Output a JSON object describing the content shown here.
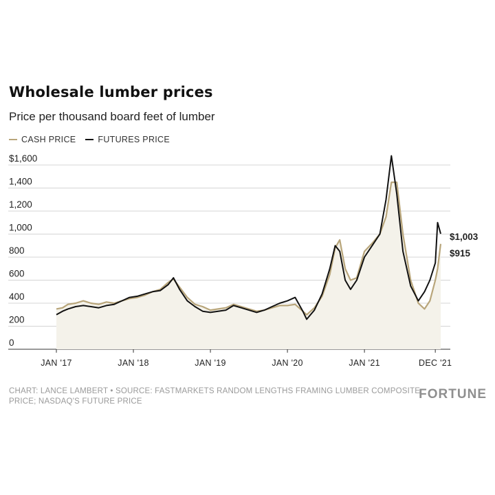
{
  "chart_data": {
    "type": "line",
    "title": "Wholesale lumber prices",
    "subtitle": "Price per thousand board feet of lumber",
    "ylim": [
      0,
      1600
    ],
    "y_ticks": [
      "$1,600",
      "1,400",
      "1,200",
      "1,000",
      "800",
      "600",
      "400",
      "200",
      "0"
    ],
    "y_tick_values": [
      1600,
      1400,
      1200,
      1000,
      800,
      600,
      400,
      200,
      0
    ],
    "x_ticks": [
      "JAN '17",
      "JAN '18",
      "JAN '19",
      "JAN '20",
      "JAN '21",
      "DEC '21"
    ],
    "x_tick_values": [
      2017.0,
      2018.0,
      2019.0,
      2020.0,
      2021.0,
      2021.92
    ],
    "legend_position": "top-left",
    "grid": true,
    "series": [
      {
        "name": "CASH PRICE",
        "color": "#b8a57a",
        "end_label": "$915",
        "points": [
          [
            2017.0,
            350
          ],
          [
            2017.08,
            360
          ],
          [
            2017.15,
            390
          ],
          [
            2017.25,
            400
          ],
          [
            2017.35,
            420
          ],
          [
            2017.45,
            400
          ],
          [
            2017.55,
            390
          ],
          [
            2017.65,
            410
          ],
          [
            2017.75,
            400
          ],
          [
            2017.85,
            420
          ],
          [
            2017.95,
            440
          ],
          [
            2018.05,
            450
          ],
          [
            2018.15,
            470
          ],
          [
            2018.25,
            500
          ],
          [
            2018.35,
            520
          ],
          [
            2018.45,
            580
          ],
          [
            2018.52,
            610
          ],
          [
            2018.6,
            540
          ],
          [
            2018.7,
            450
          ],
          [
            2018.8,
            390
          ],
          [
            2018.9,
            370
          ],
          [
            2019.0,
            340
          ],
          [
            2019.1,
            350
          ],
          [
            2019.2,
            360
          ],
          [
            2019.3,
            390
          ],
          [
            2019.4,
            370
          ],
          [
            2019.5,
            350
          ],
          [
            2019.6,
            330
          ],
          [
            2019.7,
            340
          ],
          [
            2019.8,
            360
          ],
          [
            2019.9,
            380
          ],
          [
            2020.0,
            380
          ],
          [
            2020.1,
            390
          ],
          [
            2020.2,
            330
          ],
          [
            2020.25,
            300
          ],
          [
            2020.35,
            360
          ],
          [
            2020.45,
            460
          ],
          [
            2020.55,
            650
          ],
          [
            2020.62,
            880
          ],
          [
            2020.68,
            950
          ],
          [
            2020.75,
            700
          ],
          [
            2020.82,
            600
          ],
          [
            2020.9,
            620
          ],
          [
            2021.0,
            850
          ],
          [
            2021.1,
            920
          ],
          [
            2021.2,
            1000
          ],
          [
            2021.28,
            1150
          ],
          [
            2021.35,
            1450
          ],
          [
            2021.42,
            1450
          ],
          [
            2021.5,
            1000
          ],
          [
            2021.6,
            600
          ],
          [
            2021.7,
            400
          ],
          [
            2021.78,
            350
          ],
          [
            2021.85,
            420
          ],
          [
            2021.92,
            600
          ],
          [
            2021.95,
            700
          ],
          [
            2021.99,
            915
          ]
        ]
      },
      {
        "name": "FUTURES PRICE",
        "color": "#111111",
        "end_label": "$1,003",
        "points": [
          [
            2017.0,
            300
          ],
          [
            2017.08,
            330
          ],
          [
            2017.15,
            350
          ],
          [
            2017.25,
            370
          ],
          [
            2017.35,
            380
          ],
          [
            2017.45,
            370
          ],
          [
            2017.55,
            360
          ],
          [
            2017.65,
            380
          ],
          [
            2017.75,
            390
          ],
          [
            2017.85,
            420
          ],
          [
            2017.95,
            450
          ],
          [
            2018.05,
            460
          ],
          [
            2018.15,
            480
          ],
          [
            2018.25,
            500
          ],
          [
            2018.35,
            510
          ],
          [
            2018.45,
            560
          ],
          [
            2018.52,
            620
          ],
          [
            2018.6,
            520
          ],
          [
            2018.7,
            420
          ],
          [
            2018.8,
            370
          ],
          [
            2018.9,
            330
          ],
          [
            2019.0,
            320
          ],
          [
            2019.1,
            330
          ],
          [
            2019.2,
            340
          ],
          [
            2019.3,
            380
          ],
          [
            2019.4,
            360
          ],
          [
            2019.5,
            340
          ],
          [
            2019.6,
            320
          ],
          [
            2019.7,
            340
          ],
          [
            2019.8,
            370
          ],
          [
            2019.9,
            400
          ],
          [
            2020.0,
            420
          ],
          [
            2020.1,
            450
          ],
          [
            2020.2,
            330
          ],
          [
            2020.25,
            260
          ],
          [
            2020.35,
            340
          ],
          [
            2020.45,
            480
          ],
          [
            2020.55,
            700
          ],
          [
            2020.62,
            900
          ],
          [
            2020.68,
            850
          ],
          [
            2020.75,
            600
          ],
          [
            2020.82,
            520
          ],
          [
            2020.9,
            600
          ],
          [
            2021.0,
            800
          ],
          [
            2021.1,
            900
          ],
          [
            2021.2,
            1000
          ],
          [
            2021.28,
            1300
          ],
          [
            2021.35,
            1680
          ],
          [
            2021.42,
            1350
          ],
          [
            2021.5,
            850
          ],
          [
            2021.6,
            550
          ],
          [
            2021.7,
            420
          ],
          [
            2021.78,
            500
          ],
          [
            2021.85,
            600
          ],
          [
            2021.92,
            750
          ],
          [
            2021.95,
            1100
          ],
          [
            2021.99,
            1003
          ]
        ]
      }
    ]
  },
  "footer": {
    "source": "CHART: LANCE LAMBERT • SOURCE: FASTMARKETS RANDOM LENGTHS FRAMING LUMBER COMPOSITE PRICE; NASDAQ'S FUTURE PRICE",
    "brand": "FORTUNE"
  }
}
